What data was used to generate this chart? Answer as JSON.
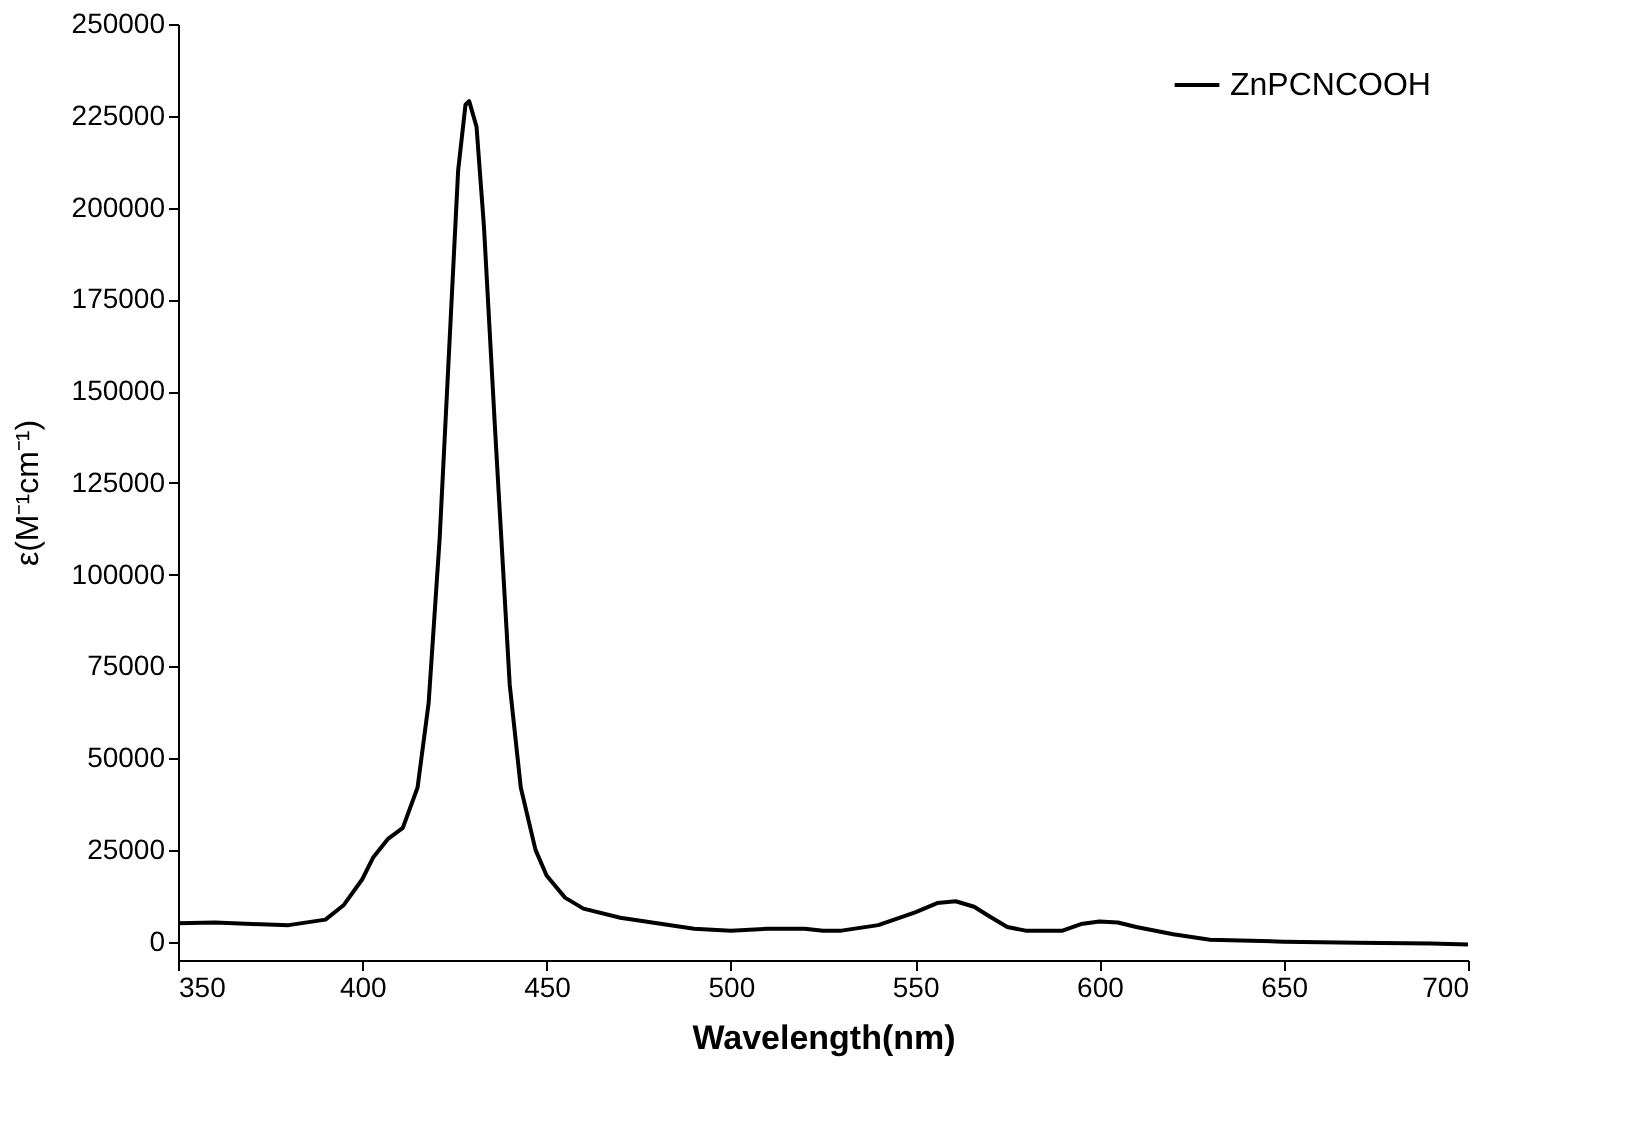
{
  "chart_data": {
    "type": "line",
    "xlabel": "Wavelength(nm)",
    "ylabel": "ε(M⁻¹cm⁻¹)",
    "xlim": [
      350,
      700
    ],
    "xticks": [
      350,
      400,
      450,
      500,
      550,
      600,
      650,
      700
    ],
    "ylim": [
      -5000,
      250000
    ],
    "yticks": [
      0,
      25000,
      50000,
      75000,
      100000,
      125000,
      150000,
      175000,
      200000,
      225000,
      250000
    ],
    "grid": false,
    "legend": "top right",
    "marker": "none",
    "line_style": "solid",
    "x": [
      350,
      360,
      370,
      380,
      390,
      395,
      400,
      403,
      407,
      411,
      415,
      418,
      421,
      424,
      426,
      428,
      429,
      431,
      433,
      436,
      440,
      443,
      447,
      450,
      455,
      460,
      470,
      480,
      490,
      500,
      510,
      520,
      525,
      530,
      540,
      550,
      556,
      561,
      566,
      570,
      575,
      580,
      590,
      595,
      600,
      605,
      610,
      620,
      630,
      650,
      670,
      690,
      700
    ],
    "series": [
      {
        "name": "ZnPCNCOOH",
        "color": "#000000",
        "values": [
          5000,
          5200,
          4800,
          4500,
          6000,
          10000,
          17000,
          23000,
          28000,
          31000,
          42000,
          65000,
          110000,
          170000,
          210000,
          228000,
          229000,
          222000,
          195000,
          140000,
          70000,
          42000,
          25000,
          18000,
          12000,
          9000,
          6500,
          5000,
          3500,
          3000,
          3500,
          3500,
          3000,
          3000,
          4500,
          8000,
          10500,
          11000,
          9500,
          7000,
          4000,
          3000,
          3000,
          4800,
          5500,
          5200,
          4000,
          2000,
          500,
          0,
          -300,
          -500,
          -800
        ]
      }
    ]
  }
}
